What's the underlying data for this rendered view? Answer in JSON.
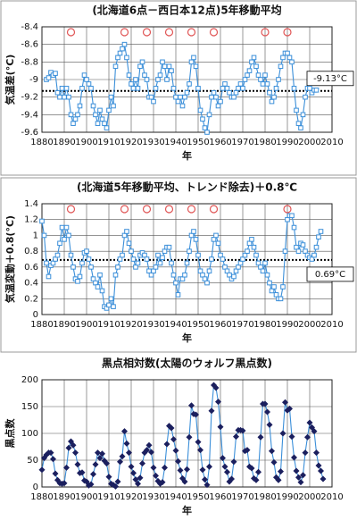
{
  "chart_data": [
    {
      "type": "line",
      "title": "(北海道6点－西日本12点)5年移動平均",
      "x_label": "年",
      "y_label": "気温差(°C)",
      "xlim": [
        1880,
        2010
      ],
      "xticks": [
        1880,
        1890,
        1900,
        1910,
        1920,
        1930,
        1940,
        1950,
        1960,
        1970,
        1980,
        1990,
        2000,
        2010
      ],
      "ylim": [
        -9.6,
        -8.4
      ],
      "yticks": [
        -9.6,
        -9.4,
        -9.2,
        -9,
        -8.8,
        -8.6,
        -8.4
      ],
      "grid": true,
      "marker": "square",
      "reference_line": {
        "value": -9.13,
        "label": "-9.13°C"
      },
      "circle_markers": {
        "color": "#e05555",
        "x": [
          1893,
          1917,
          1927,
          1937,
          1947,
          1957,
          1980,
          1990
        ]
      },
      "series": [
        {
          "color": "#3b8fd9",
          "x": [
            1882,
            1883,
            1884,
            1885,
            1886,
            1887,
            1888,
            1889,
            1890,
            1891,
            1892,
            1893,
            1894,
            1895,
            1896,
            1897,
            1898,
            1899,
            1900,
            1901,
            1902,
            1903,
            1904,
            1905,
            1906,
            1907,
            1908,
            1909,
            1910,
            1911,
            1912,
            1913,
            1914,
            1915,
            1916,
            1917,
            1918,
            1919,
            1920,
            1921,
            1922,
            1923,
            1924,
            1925,
            1926,
            1927,
            1928,
            1929,
            1930,
            1931,
            1932,
            1933,
            1934,
            1935,
            1936,
            1937,
            1938,
            1939,
            1940,
            1941,
            1942,
            1943,
            1944,
            1945,
            1946,
            1947,
            1948,
            1949,
            1950,
            1951,
            1952,
            1953,
            1954,
            1955,
            1956,
            1957,
            1958,
            1959,
            1960,
            1961,
            1962,
            1963,
            1964,
            1965,
            1966,
            1967,
            1968,
            1969,
            1970,
            1971,
            1972,
            1973,
            1974,
            1975,
            1976,
            1977,
            1978,
            1979,
            1980,
            1981,
            1982,
            1983,
            1984,
            1985,
            1986,
            1987,
            1988,
            1989,
            1990,
            1991,
            1992,
            1993,
            1994,
            1995,
            1996,
            1997,
            1998,
            1999,
            2000,
            2001,
            2002,
            2003
          ],
          "values": [
            -9.0,
            -8.98,
            -8.92,
            -8.95,
            -8.93,
            -9.15,
            -9.2,
            -9.1,
            -9.2,
            -9.1,
            -9.2,
            -9.4,
            -9.5,
            -9.45,
            -9.4,
            -9.3,
            -9.1,
            -8.95,
            -9.0,
            -9.05,
            -9.1,
            -9.3,
            -9.4,
            -9.5,
            -9.35,
            -9.45,
            -9.5,
            -9.55,
            -9.35,
            -9.2,
            -9.3,
            -8.85,
            -8.75,
            -8.7,
            -8.65,
            -8.6,
            -8.75,
            -8.95,
            -9.05,
            -9.1,
            -9.0,
            -9.1,
            -8.85,
            -8.8,
            -8.95,
            -9.0,
            -9.2,
            -9.2,
            -9.25,
            -9.1,
            -9.0,
            -8.95,
            -8.8,
            -8.85,
            -9.0,
            -8.85,
            -8.9,
            -9.1,
            -9.2,
            -9.25,
            -9.2,
            -9.3,
            -9.2,
            -9.15,
            -9.05,
            -8.8,
            -8.75,
            -8.85,
            -9.1,
            -9.35,
            -9.45,
            -9.55,
            -9.6,
            -9.4,
            -9.2,
            -9.15,
            -9.2,
            -9.3,
            -9.25,
            -9.1,
            -9.05,
            -9.1,
            -9.15,
            -9.2,
            -9.2,
            -9.15,
            -9.1,
            -9.05,
            -9.1,
            -9.0,
            -8.95,
            -8.9,
            -8.8,
            -8.75,
            -8.85,
            -8.95,
            -9.0,
            -9.05,
            -8.95,
            -9.05,
            -9.15,
            -9.25,
            -9.2,
            -9.1,
            -9.0,
            -8.85,
            -8.75,
            -8.7,
            -8.7,
            -8.75,
            -8.8,
            -9.1,
            -9.35,
            -9.5,
            -9.55,
            -9.4,
            -9.2,
            -9.1,
            -9.1,
            -9.15,
            -9.12,
            -9.12
          ]
        }
      ]
    },
    {
      "type": "line",
      "title": "(北海道5年移動平均、トレンド除去)＋0.8℃",
      "x_label": "年",
      "y_label": "気温変動＋0.8(°C)",
      "xlim": [
        1880,
        2010
      ],
      "xticks": [
        1880,
        1890,
        1900,
        1910,
        1920,
        1930,
        1940,
        1950,
        1960,
        1970,
        1980,
        1990,
        2000,
        2010
      ],
      "ylim": [
        0,
        1.4
      ],
      "yticks": [
        0,
        0.2,
        0.4,
        0.6,
        0.8,
        1,
        1.2,
        1.4
      ],
      "grid": true,
      "marker": "square",
      "reference_line": {
        "value": 0.69,
        "label": "0.69°C"
      },
      "circle_markers": {
        "color": "#e05555",
        "x": [
          1893,
          1917,
          1927,
          1937,
          1947,
          1957,
          1990
        ]
      },
      "series": [
        {
          "color": "#3b8fd9",
          "x": [
            1880,
            1881,
            1882,
            1883,
            1884,
            1885,
            1886,
            1887,
            1888,
            1889,
            1890,
            1891,
            1892,
            1893,
            1894,
            1895,
            1896,
            1897,
            1898,
            1899,
            1900,
            1901,
            1902,
            1903,
            1904,
            1905,
            1906,
            1907,
            1908,
            1909,
            1910,
            1911,
            1912,
            1913,
            1914,
            1915,
            1916,
            1917,
            1918,
            1919,
            1920,
            1921,
            1922,
            1923,
            1924,
            1925,
            1926,
            1927,
            1928,
            1929,
            1930,
            1931,
            1932,
            1933,
            1934,
            1935,
            1936,
            1937,
            1938,
            1939,
            1940,
            1941,
            1942,
            1943,
            1944,
            1945,
            1946,
            1947,
            1948,
            1949,
            1950,
            1951,
            1952,
            1953,
            1954,
            1955,
            1956,
            1957,
            1958,
            1959,
            1960,
            1961,
            1962,
            1963,
            1964,
            1965,
            1966,
            1967,
            1968,
            1969,
            1970,
            1971,
            1972,
            1973,
            1974,
            1975,
            1976,
            1977,
            1978,
            1979,
            1980,
            1981,
            1982,
            1983,
            1984,
            1985,
            1986,
            1987,
            1988,
            1989,
            1990,
            1991,
            1992,
            1993,
            1994,
            1995,
            1996,
            1997,
            1998,
            1999,
            2000,
            2001,
            2002,
            2003,
            2004,
            2005
          ],
          "values": [
            1.18,
            1.0,
            0.65,
            0.48,
            0.62,
            0.65,
            0.7,
            0.75,
            0.9,
            1.1,
            0.95,
            1.1,
            1.0,
            0.75,
            0.6,
            0.45,
            0.42,
            0.48,
            0.65,
            0.78,
            0.8,
            0.7,
            0.6,
            0.45,
            0.4,
            0.35,
            0.5,
            0.3,
            0.1,
            0.08,
            0.12,
            0.2,
            0.1,
            0.5,
            0.6,
            0.7,
            0.75,
            1.0,
            1.05,
            0.9,
            0.8,
            0.7,
            0.6,
            0.65,
            0.75,
            0.78,
            0.75,
            0.7,
            0.55,
            0.5,
            0.55,
            0.6,
            0.75,
            0.65,
            0.72,
            0.8,
            0.85,
            0.85,
            0.65,
            0.5,
            0.4,
            0.25,
            0.45,
            0.45,
            0.5,
            0.65,
            0.8,
            1.0,
            1.05,
            0.95,
            0.75,
            0.55,
            0.5,
            0.45,
            0.4,
            0.55,
            0.7,
            0.95,
            1.0,
            0.9,
            0.75,
            0.7,
            0.6,
            0.55,
            0.5,
            0.45,
            0.48,
            0.55,
            0.6,
            0.65,
            0.7,
            0.75,
            0.8,
            0.9,
            0.95,
            0.85,
            0.75,
            0.65,
            0.6,
            0.55,
            0.65,
            0.5,
            0.4,
            0.3,
            0.35,
            0.25,
            0.2,
            0.2,
            0.35,
            0.8,
            1.2,
            1.25,
            1.25,
            1.1,
            0.85,
            0.8,
            0.9,
            0.88,
            0.8,
            0.75,
            0.72,
            0.7,
            0.75,
            0.85,
            0.98,
            1.05
          ]
        }
      ]
    },
    {
      "type": "line",
      "title": "黒点相対数(太陽のウォルフ黒点数)",
      "x_label": "年",
      "y_label": "黒点数",
      "xlim": [
        1880,
        2010
      ],
      "xticks": [
        1880,
        1890,
        1900,
        1910,
        1920,
        1930,
        1940,
        1950,
        1960,
        1970,
        1980,
        1990,
        2000,
        2010
      ],
      "ylim": [
        0,
        200
      ],
      "yticks": [
        0,
        50,
        100,
        150,
        200
      ],
      "grid": true,
      "marker": "diamond",
      "series": [
        {
          "color": "#3b8fd9",
          "marker_color": "#1b1f5e",
          "x": [
            1880,
            1881,
            1882,
            1883,
            1884,
            1885,
            1886,
            1887,
            1888,
            1889,
            1890,
            1891,
            1892,
            1893,
            1894,
            1895,
            1896,
            1897,
            1898,
            1899,
            1900,
            1901,
            1902,
            1903,
            1904,
            1905,
            1906,
            1907,
            1908,
            1909,
            1910,
            1911,
            1912,
            1913,
            1914,
            1915,
            1916,
            1917,
            1918,
            1919,
            1920,
            1921,
            1922,
            1923,
            1924,
            1925,
            1926,
            1927,
            1928,
            1929,
            1930,
            1931,
            1932,
            1933,
            1934,
            1935,
            1936,
            1937,
            1938,
            1939,
            1940,
            1941,
            1942,
            1943,
            1944,
            1945,
            1946,
            1947,
            1948,
            1949,
            1950,
            1951,
            1952,
            1953,
            1954,
            1955,
            1956,
            1957,
            1958,
            1959,
            1960,
            1961,
            1962,
            1963,
            1964,
            1965,
            1966,
            1967,
            1968,
            1969,
            1970,
            1971,
            1972,
            1973,
            1974,
            1975,
            1976,
            1977,
            1978,
            1979,
            1980,
            1981,
            1982,
            1983,
            1984,
            1985,
            1986,
            1987,
            1988,
            1989,
            1990,
            1991,
            1992,
            1993,
            1994,
            1995,
            1996,
            1997,
            1998,
            1999,
            2000,
            2001,
            2002,
            2003,
            2004,
            2005,
            2006
          ],
          "values": [
            32,
            54,
            60,
            64,
            64,
            52,
            25,
            13,
            7,
            6,
            7,
            36,
            73,
            85,
            78,
            64,
            42,
            26,
            27,
            12,
            10,
            3,
            5,
            24,
            42,
            64,
            54,
            62,
            49,
            44,
            19,
            6,
            4,
            1,
            10,
            47,
            57,
            104,
            81,
            64,
            38,
            26,
            14,
            6,
            17,
            44,
            64,
            69,
            78,
            65,
            36,
            21,
            11,
            6,
            9,
            36,
            80,
            114,
            110,
            89,
            68,
            48,
            31,
            16,
            10,
            33,
            93,
            152,
            136,
            135,
            84,
            69,
            32,
            14,
            4,
            38,
            142,
            190,
            185,
            159,
            112,
            54,
            38,
            28,
            10,
            15,
            47,
            94,
            106,
            106,
            105,
            67,
            69,
            38,
            35,
            16,
            13,
            28,
            93,
            155,
            155,
            140,
            116,
            67,
            46,
            18,
            13,
            29,
            100,
            158,
            143,
            146,
            94,
            55,
            30,
            18,
            9,
            22,
            64,
            93,
            120,
            111,
            104,
            64,
            40,
            30,
            15
          ]
        }
      ]
    }
  ]
}
